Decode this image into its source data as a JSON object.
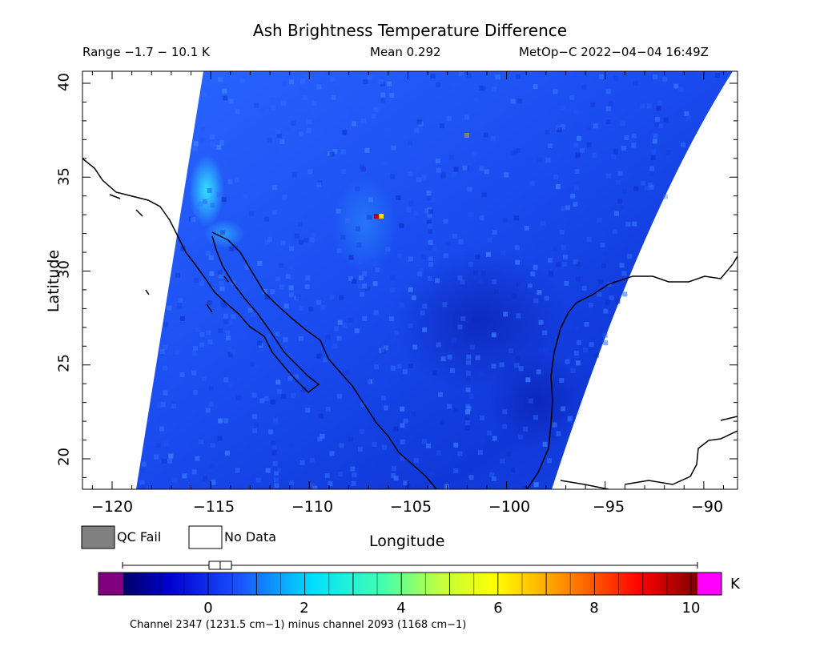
{
  "title": "Ash Brightness Temperature Difference",
  "range_text": "Range −1.7 − 10.1 K",
  "mean_text": "Mean 0.292",
  "satellite_text": "MetOp−C 2022−04−04 16:49Z",
  "axes": {
    "ylabel": "Latitude",
    "xlabel": "Longitude",
    "y_ticks": [
      "40",
      "35",
      "30",
      "25",
      "20"
    ],
    "x_ticks": [
      "−120",
      "−115",
      "−110",
      "−105",
      "−100",
      "−95",
      "−90"
    ]
  },
  "legend": {
    "qc_fail_label": "QC Fail",
    "no_data_label": "No Data",
    "qc_fail_color": "#808080",
    "no_data_color": "#ffffff"
  },
  "colorbar": {
    "ticks": [
      "0",
      "2",
      "4",
      "6",
      "8",
      "10"
    ],
    "unit": "K",
    "caption": "Channel 2347 (1231.5 cm−1) minus channel 2093 (1168 cm−1)",
    "under_color": "#800080",
    "over_color": "#ff00ff"
  }
}
